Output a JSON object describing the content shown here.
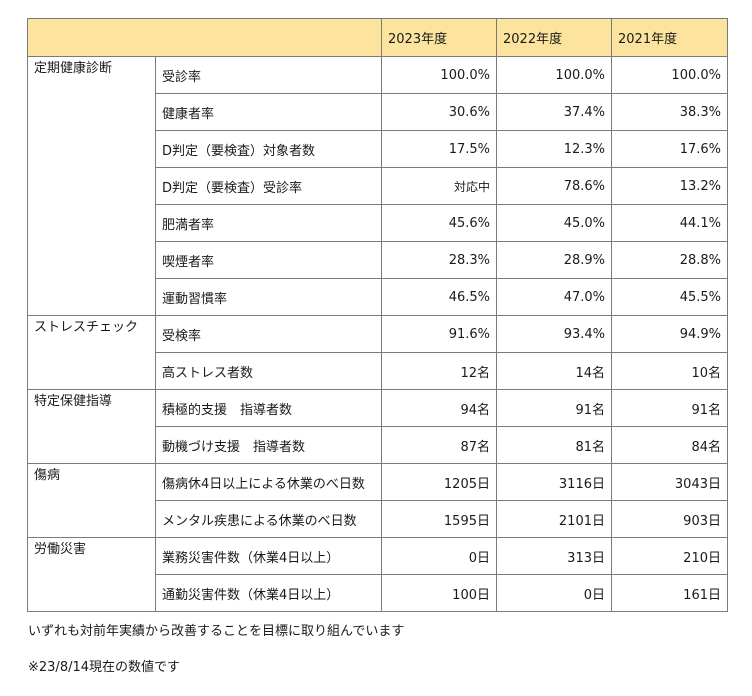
{
  "table": {
    "headers": [
      "",
      "2023年度",
      "2022年度",
      "2021年度"
    ],
    "groups": [
      {
        "category": "定期健康診断",
        "rows": [
          {
            "item": "受診率",
            "values": [
              "100.0%",
              "100.0%",
              "100.0%"
            ]
          },
          {
            "item": "健康者率",
            "values": [
              "30.6%",
              "37.4%",
              "38.3%"
            ]
          },
          {
            "item": "D判定（要検査）対象者数",
            "values": [
              "17.5%",
              "12.3%",
              "17.6%"
            ]
          },
          {
            "item": "D判定（要検査）受診率",
            "values": [
              "対応中",
              "78.6%",
              "13.2%"
            ]
          },
          {
            "item": "肥満者率",
            "values": [
              "45.6%",
              "45.0%",
              "44.1%"
            ]
          },
          {
            "item": "喫煙者率",
            "values": [
              "28.3%",
              "28.9%",
              "28.8%"
            ]
          },
          {
            "item": "運動習慣率",
            "values": [
              "46.5%",
              "47.0%",
              "45.5%"
            ]
          }
        ]
      },
      {
        "category": "ストレスチェック",
        "rows": [
          {
            "item": "受検率",
            "values": [
              "91.6%",
              "93.4%",
              "94.9%"
            ]
          },
          {
            "item": "高ストレス者数",
            "values": [
              "12名",
              "14名",
              "10名"
            ]
          }
        ]
      },
      {
        "category": "特定保健指導",
        "rows": [
          {
            "item": "積極的支援　指導者数",
            "values": [
              "94名",
              "91名",
              "91名"
            ]
          },
          {
            "item": "動機づけ支援　指導者数",
            "values": [
              "87名",
              "81名",
              "84名"
            ]
          }
        ]
      },
      {
        "category": "傷病",
        "rows": [
          {
            "item": "傷病休4日以上による休業のべ日数",
            "values": [
              "1205日",
              "3116日",
              "3043日"
            ]
          },
          {
            "item": "メンタル疾患による休業のべ日数",
            "values": [
              "1595日",
              "2101日",
              "903日"
            ]
          }
        ]
      },
      {
        "category": "労働災害",
        "rows": [
          {
            "item": "業務災害件数（休業4日以上）",
            "values": [
              "0日",
              "313日",
              "210日"
            ]
          },
          {
            "item": "通勤災害件数（休業4日以上）",
            "values": [
              "100日",
              "0日",
              "161日"
            ]
          }
        ]
      }
    ]
  },
  "notes": {
    "line1": "いずれも対前年実績から改善することを目標に取り組んでいます",
    "line2": "※23/8/14現在の数値です"
  },
  "colors": {
    "header_background": "#fce49e",
    "border": "#7a7a7a"
  }
}
